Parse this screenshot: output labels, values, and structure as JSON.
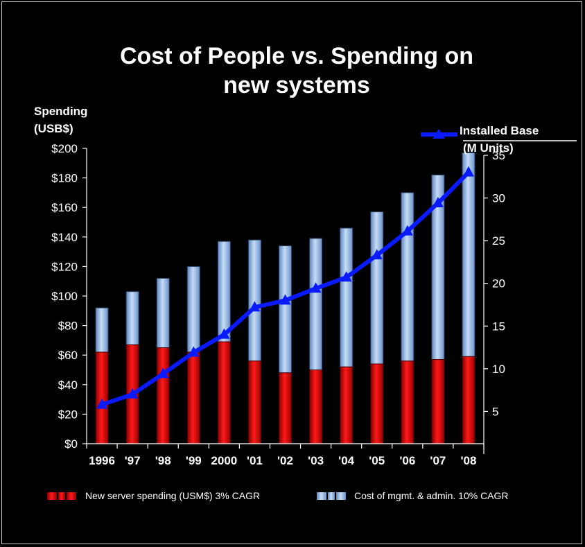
{
  "chart_data": {
    "type": "bar",
    "title": "Cost of People vs. Spending on new systems",
    "title_lines": [
      "Cost of People vs. Spending on",
      "new systems"
    ],
    "ylabel_lines": [
      "Spending",
      "(USB$)"
    ],
    "y2label_lines": [
      "Installed Base",
      "(M Units)"
    ],
    "categories": [
      "1996",
      "'97",
      "'98",
      "'99",
      "2000",
      "'01",
      "'02",
      "'03",
      "'04",
      "'05",
      "'06",
      "'07",
      "'08"
    ],
    "ylim": [
      0,
      200
    ],
    "y_ticks": [
      0,
      20,
      40,
      60,
      80,
      100,
      120,
      140,
      160,
      180,
      200
    ],
    "y_tick_labels": [
      "$0",
      "$20",
      "$40",
      "$60",
      "$80",
      "$100",
      "$120",
      "$140",
      "$160",
      "$180",
      "$200"
    ],
    "y2lim": [
      0,
      35
    ],
    "y2_ticks": [
      5,
      10,
      15,
      20,
      25,
      30,
      35
    ],
    "y2_tick_labels": [
      "5",
      "10",
      "15",
      "20",
      "25",
      "30",
      "35"
    ],
    "stacked": true,
    "series": [
      {
        "name": "New server spending (USM$) 3% CAGR",
        "kind": "bar",
        "color": "#e00000",
        "values": [
          62,
          67,
          65,
          62,
          69,
          56,
          48,
          50,
          52,
          54,
          56,
          57,
          59
        ]
      },
      {
        "name": "Cost of mgmt. & admin. 10% CAGR",
        "kind": "bar",
        "color": "#8fb8e8",
        "values": [
          30,
          36,
          47,
          58,
          68,
          82,
          86,
          89,
          94,
          103,
          114,
          125,
          138
        ]
      },
      {
        "name": "Installed Base (M Units)",
        "kind": "line",
        "axis": "right",
        "color": "#0a1aff",
        "values": [
          5.8,
          7.0,
          9.4,
          11.9,
          14.0,
          17.2,
          18.0,
          19.4,
          20.7,
          23.3,
          26.1,
          29.4,
          33.0
        ]
      }
    ],
    "legend": {
      "bar_items": [
        "New server spending (USM$) 3% CAGR",
        "Cost of mgmt. & admin. 10% CAGR"
      ],
      "line_item": "Installed Base"
    }
  }
}
